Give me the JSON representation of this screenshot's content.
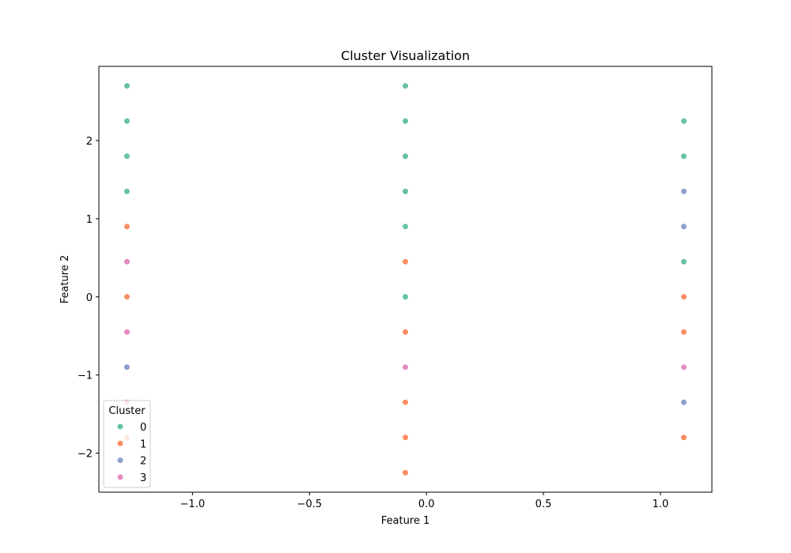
{
  "chart_data": {
    "type": "scatter",
    "title": "Cluster Visualization",
    "xlabel": "Feature 1",
    "ylabel": "Feature 2",
    "xlim": [
      -1.4,
      1.22
    ],
    "ylim": [
      -2.5,
      2.95
    ],
    "xticks": [
      -1.0,
      -0.5,
      0.0,
      0.5,
      1.0
    ],
    "xtick_labels": [
      "−1.0",
      "−0.5",
      "0.0",
      "0.5",
      "1.0"
    ],
    "yticks": [
      -2,
      -1,
      0,
      1,
      2
    ],
    "ytick_labels": [
      "−2",
      "−1",
      "0",
      "1",
      "2"
    ],
    "grid": false,
    "legend": {
      "title": "Cluster",
      "placement": "lower-left",
      "entries": [
        {
          "label": "0",
          "color": "#66c2a5"
        },
        {
          "label": "1",
          "color": "#fc8d62"
        },
        {
          "label": "2",
          "color": "#8da0cb"
        },
        {
          "label": "3",
          "color": "#e78ac3"
        }
      ]
    },
    "points": [
      {
        "x": -1.28,
        "y": 2.7,
        "cluster": 0
      },
      {
        "x": -1.28,
        "y": 2.25,
        "cluster": 0
      },
      {
        "x": -1.28,
        "y": 1.8,
        "cluster": 0
      },
      {
        "x": -1.28,
        "y": 1.35,
        "cluster": 0
      },
      {
        "x": -1.28,
        "y": 0.9,
        "cluster": 1
      },
      {
        "x": -1.28,
        "y": 0.45,
        "cluster": 3
      },
      {
        "x": -1.28,
        "y": 0.0,
        "cluster": 1
      },
      {
        "x": -1.28,
        "y": -0.45,
        "cluster": 3
      },
      {
        "x": -1.28,
        "y": -0.9,
        "cluster": 2
      },
      {
        "x": -1.28,
        "y": -1.35,
        "cluster": 3
      },
      {
        "x": -1.28,
        "y": -1.8,
        "cluster": 1
      },
      {
        "x": -0.09,
        "y": 2.7,
        "cluster": 0
      },
      {
        "x": -0.09,
        "y": 2.25,
        "cluster": 0
      },
      {
        "x": -0.09,
        "y": 1.8,
        "cluster": 0
      },
      {
        "x": -0.09,
        "y": 1.35,
        "cluster": 0
      },
      {
        "x": -0.09,
        "y": 0.9,
        "cluster": 0
      },
      {
        "x": -0.09,
        "y": 0.45,
        "cluster": 1
      },
      {
        "x": -0.09,
        "y": 0.0,
        "cluster": 0
      },
      {
        "x": -0.09,
        "y": -0.45,
        "cluster": 1
      },
      {
        "x": -0.09,
        "y": -0.9,
        "cluster": 3
      },
      {
        "x": -0.09,
        "y": -1.35,
        "cluster": 1
      },
      {
        "x": -0.09,
        "y": -1.8,
        "cluster": 1
      },
      {
        "x": -0.09,
        "y": -2.25,
        "cluster": 1
      },
      {
        "x": 1.1,
        "y": 2.25,
        "cluster": 0
      },
      {
        "x": 1.1,
        "y": 1.8,
        "cluster": 0
      },
      {
        "x": 1.1,
        "y": 1.35,
        "cluster": 2
      },
      {
        "x": 1.1,
        "y": 0.9,
        "cluster": 2
      },
      {
        "x": 1.1,
        "y": 0.45,
        "cluster": 0
      },
      {
        "x": 1.1,
        "y": 0.0,
        "cluster": 1
      },
      {
        "x": 1.1,
        "y": -0.45,
        "cluster": 1
      },
      {
        "x": 1.1,
        "y": -0.9,
        "cluster": 3
      },
      {
        "x": 1.1,
        "y": -1.35,
        "cluster": 2
      },
      {
        "x": 1.1,
        "y": -1.8,
        "cluster": 1
      }
    ]
  }
}
